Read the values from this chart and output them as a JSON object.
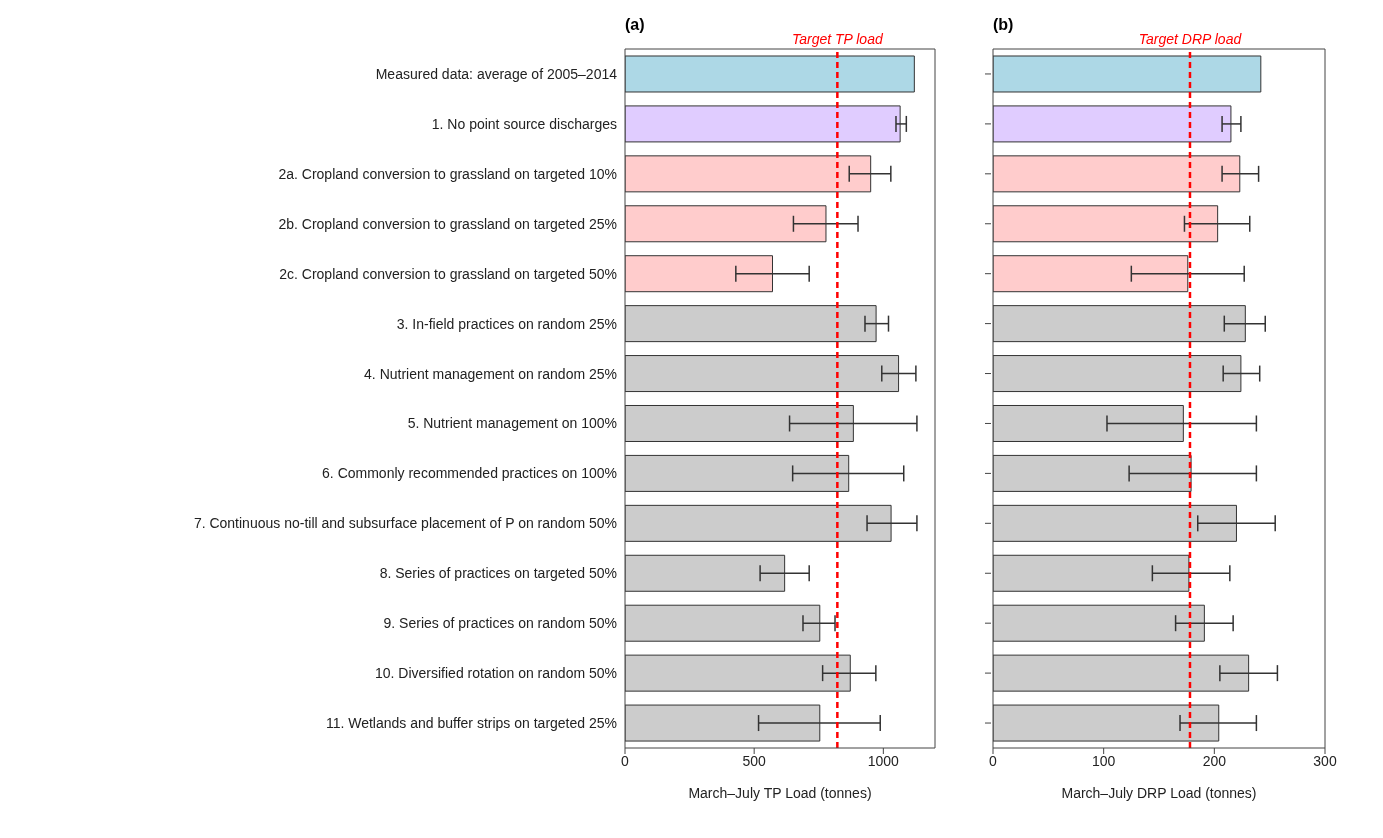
{
  "chart_data": [
    {
      "type": "bar",
      "orientation": "horizontal",
      "title": "(a)",
      "xlabel": "March–July TP Load (tonnes)",
      "categories": [
        "Measured data: average of 2005–2014",
        "1. No point source discharges",
        "2a. Cropland conversion to grassland on targeted 10%",
        "2b. Cropland conversion to grassland on targeted 25%",
        "2c. Cropland conversion to grassland on targeted 50%",
        "3. In-field practices on random 25%",
        "4. Nutrient management on random 25%",
        "5. Nutrient management on 100%",
        "6. Commonly recommended practices on 100%",
        "7. Continuous no-till and subsurface placement of P on random 50%",
        "8. Series of practices on targeted 50%",
        "9. Series of practices on random 50%",
        "10. Diversified rotation on random 50%",
        "11. Wetlands and buffer strips on targeted 25%"
      ],
      "values": [
        1120,
        1065,
        951,
        778,
        571,
        972,
        1059,
        884,
        866,
        1030,
        618,
        754,
        872,
        754
      ],
      "errors": [
        null,
        [
          1049,
          1089
        ],
        [
          868,
          1029
        ],
        [
          652,
          902
        ],
        [
          429,
          713
        ],
        [
          929,
          1020
        ],
        [
          994,
          1126
        ],
        [
          637,
          1130
        ],
        [
          649,
          1079
        ],
        [
          937,
          1130
        ],
        [
          523,
          713
        ],
        [
          689,
          813
        ],
        [
          765,
          971
        ],
        [
          517,
          988
        ]
      ],
      "colors": [
        "#add8e6",
        "#e0ccff",
        "#ffcccc",
        "#ffcccc",
        "#ffcccc",
        "#cccccc",
        "#cccccc",
        "#cccccc",
        "#cccccc",
        "#cccccc",
        "#cccccc",
        "#cccccc",
        "#cccccc",
        "#cccccc"
      ],
      "xlim": [
        0,
        1200
      ],
      "xticks": [
        0,
        500,
        1000
      ],
      "ref_lines": [
        {
          "axis": "x",
          "value": 822,
          "label": "Target TP load",
          "color": "#ff0000",
          "line_style": "dashed"
        }
      ]
    },
    {
      "type": "bar",
      "orientation": "horizontal",
      "title": "(b)",
      "xlabel": "March–July DRP Load (tonnes)",
      "tick_labels": "x",
      "values": [
        242,
        215,
        223,
        203,
        176,
        228,
        224,
        172,
        179,
        220,
        177,
        191,
        231,
        204
      ],
      "errors": [
        null,
        [
          207,
          224
        ],
        [
          207,
          240
        ],
        [
          173,
          232
        ],
        [
          125,
          227
        ],
        [
          209,
          246
        ],
        [
          208,
          241
        ],
        [
          103,
          238
        ],
        [
          123,
          238
        ],
        [
          185,
          255
        ],
        [
          144,
          214
        ],
        [
          165,
          217
        ],
        [
          205,
          257
        ],
        [
          169,
          238
        ]
      ],
      "colors": [
        "#add8e6",
        "#e0ccff",
        "#ffcccc",
        "#ffcccc",
        "#ffcccc",
        "#cccccc",
        "#cccccc",
        "#cccccc",
        "#cccccc",
        "#cccccc",
        "#cccccc",
        "#cccccc",
        "#cccccc",
        "#cccccc"
      ],
      "xlim": [
        0,
        300
      ],
      "xticks": [
        0,
        100,
        200,
        300
      ],
      "ref_lines": [
        {
          "axis": "x",
          "value": 178,
          "label": "Target DRP load",
          "color": "#ff0000",
          "line_style": "dashed"
        }
      ]
    }
  ]
}
